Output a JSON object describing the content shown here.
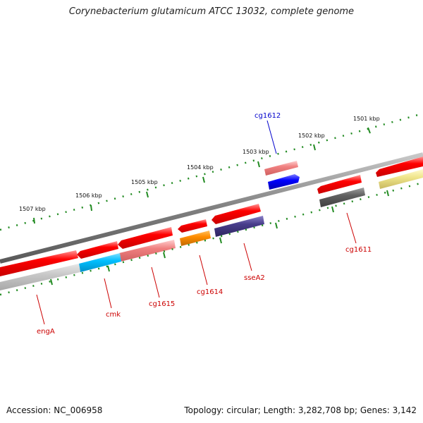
{
  "title": "Corynebacterium glutamicum ATCC 13032, complete genome",
  "accession": "Accession: NC_006958",
  "summary": "Topology: circular; Length: 3,282,708 bp; Genes: 3,142",
  "ticks": [
    "1501 kbp",
    "1502 kbp",
    "1503 kbp",
    "1504 kbp",
    "1505 kbp",
    "1506 kbp",
    "1507 kbp"
  ],
  "genes": {
    "cg1612": "cg1612",
    "cg1611": "cg1611",
    "sseA2": "sseA2",
    "cg1614": "cg1614",
    "cg1615": "cg1615",
    "cmk": "cmk",
    "engA": "engA"
  },
  "colors": {
    "cds": "#ff0000",
    "backbone": "#808080",
    "tick": "#228b22",
    "label_red": "#cc0000",
    "label_blue": "#0000cc"
  }
}
